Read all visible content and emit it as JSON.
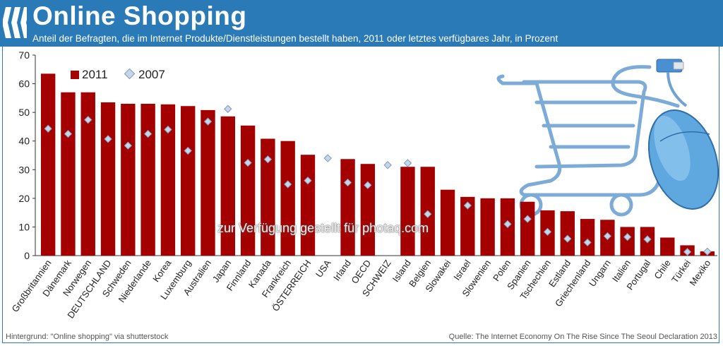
{
  "header": {
    "title": "Online Shopping",
    "subtitle": "Anteil der Befragten, die im Internet Produkte/Dienstleistungen bestellt haben, 2011 oder letztes verfügbares Jahr, in Prozent"
  },
  "footer": {
    "left": "Hintergrund: \"Online  shopping\" via shutterstock",
    "right": "Quelle: The Internet Economy On The Rise Since The Seoul Declaration 2013"
  },
  "watermark": "zur Verfügung gestellt für photaq.com",
  "colors": {
    "header": "#2a7ab8",
    "bar": "#a50000",
    "marker": "#c6d6ea",
    "marker_border": "#7e98b8"
  },
  "chart_data": {
    "type": "bar",
    "title": "Online Shopping",
    "subtitle": "Anteil der Befragten, die im Internet Produkte/Dienstleistungen bestellt haben, 2011 oder letztes verfügbares Jahr, in Prozent",
    "ylim": [
      0,
      70
    ],
    "yticks": [
      0,
      10,
      20,
      30,
      40,
      50,
      60,
      70
    ],
    "legend_position": "top-left",
    "grid": false,
    "categories": [
      "Großbritannien",
      "Dänemark",
      "Norwegen",
      "DEUTSCHLAND",
      "Schweden",
      "Niederlande",
      "Korea",
      "Luxemburg",
      "Australien",
      "Japan",
      "Finnland",
      "Kanada",
      "Frankreich",
      "ÖSTERREICH",
      "USA",
      "Irland",
      "OECD",
      "SCHWEIZ",
      "Island",
      "Belgien",
      "Slowakei",
      "Israel",
      "Slowenien",
      "Polen",
      "Spanien",
      "Tschechien",
      "Estland",
      "Griechenland",
      "Ungarn",
      "Italien",
      "Portugal",
      "Chile",
      "Türkei",
      "Mexiko"
    ],
    "series": [
      {
        "name": "2011",
        "style": "bar",
        "values": [
          63.5,
          57,
          57,
          53.5,
          53,
          53,
          52.8,
          52.2,
          50.8,
          48.6,
          45.4,
          40.8,
          40,
          35.2,
          null,
          33.7,
          32,
          null,
          31,
          31,
          23,
          20.5,
          20,
          20,
          18.8,
          15.8,
          15.5,
          12.8,
          12.5,
          10,
          10,
          6.3,
          3.6,
          1.5
        ]
      },
      {
        "name": "2007",
        "style": "diamond",
        "values": [
          44.3,
          42.5,
          47.4,
          40.7,
          38.4,
          42.5,
          44,
          36.6,
          46.8,
          51.2,
          32.4,
          33.6,
          24.9,
          26.2,
          34,
          25.5,
          24.6,
          31.6,
          32.3,
          14.5,
          null,
          17.5,
          null,
          11,
          12.8,
          8.3,
          5.9,
          4.6,
          6.8,
          6.5,
          5.7,
          null,
          1.3,
          1.4
        ]
      }
    ]
  }
}
